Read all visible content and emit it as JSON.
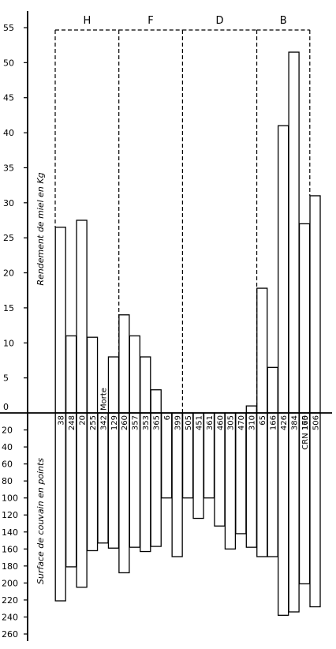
{
  "chart_data": {
    "type": "bar",
    "ylabel_top": "Rendement de miel en Kg",
    "ylabel_bottom": "Surface de couvain en points",
    "top_ylim": [
      0,
      55
    ],
    "top_ticks": [
      0,
      5,
      10,
      15,
      20,
      25,
      30,
      35,
      40,
      45,
      50,
      55
    ],
    "bottom_ylim": [
      0,
      260
    ],
    "bottom_ticks": [
      20,
      40,
      60,
      80,
      100,
      120,
      140,
      160,
      180,
      200,
      220,
      240,
      260
    ],
    "groups": [
      {
        "name": "H",
        "from": 0,
        "to": 6
      },
      {
        "name": "F",
        "from": 6,
        "to": 12
      },
      {
        "name": "D",
        "from": 12,
        "to": 19
      },
      {
        "name": "B",
        "from": 19,
        "to": 24
      }
    ],
    "colonies": [
      "38",
      "248",
      "20",
      "255",
      "342",
      "129",
      "260",
      "357",
      "353",
      "365",
      "6",
      "399",
      "505",
      "451",
      "361",
      "460",
      "305",
      "470",
      "310",
      "65",
      "166",
      "426",
      "384",
      "CRN 165",
      "170",
      "506"
    ],
    "bar_slots": [
      0,
      1,
      2,
      3,
      4,
      5,
      6,
      7,
      8,
      9,
      10,
      11,
      12,
      13,
      14,
      15,
      16,
      17,
      18,
      19,
      20,
      21,
      22,
      23,
      23,
      24
    ],
    "honey_kg": [
      26.5,
      11,
      27.5,
      10.8,
      0,
      8,
      14,
      11,
      8,
      3.3,
      0,
      0,
      0,
      0,
      0,
      0,
      0,
      0,
      1,
      17.8,
      6.5,
      41,
      51.5,
      0,
      27,
      31
    ],
    "brood_points": [
      221,
      181,
      205,
      162,
      153,
      159,
      188,
      158,
      163,
      157,
      100,
      169,
      100,
      124,
      100,
      133,
      160,
      142,
      158,
      169,
      169,
      238,
      234,
      0,
      201,
      228
    ],
    "special_labels": [
      {
        "slot": 4,
        "text": "Morte"
      }
    ]
  }
}
